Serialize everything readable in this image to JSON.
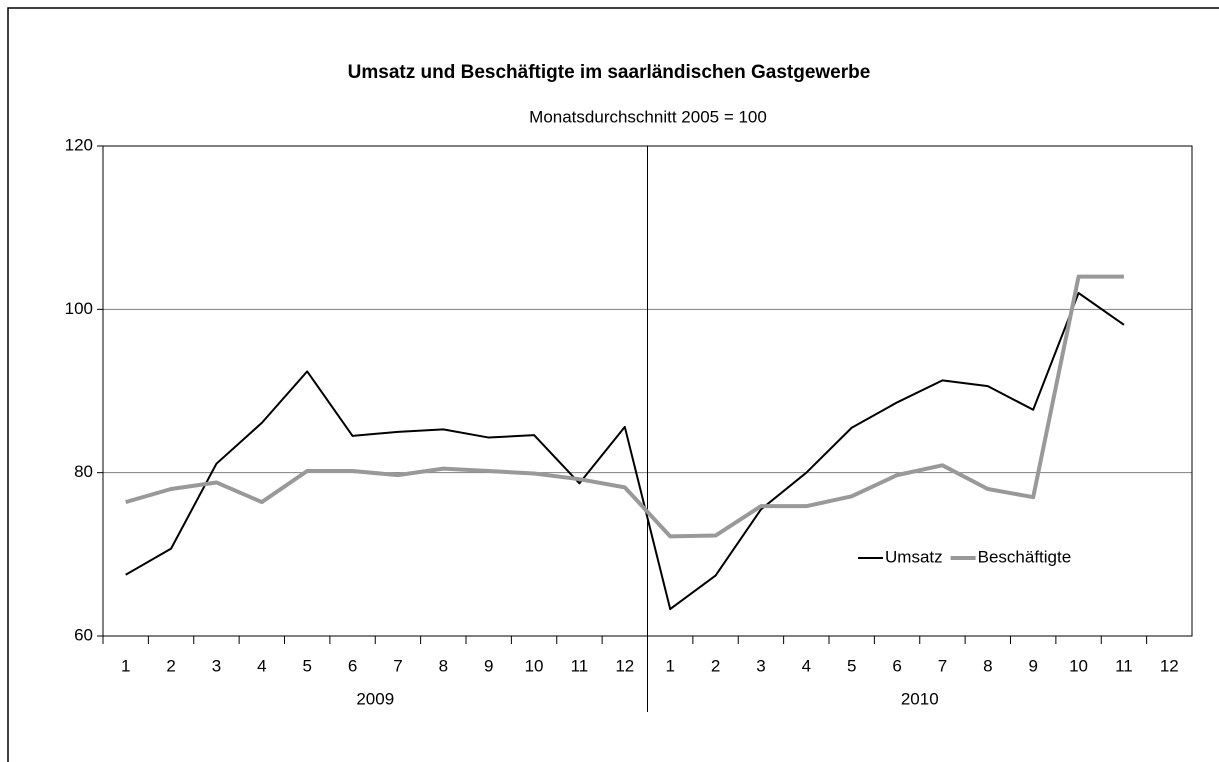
{
  "chart_data": {
    "type": "line",
    "title": "Umsatz und Beschäftigte im saarländischen Gastgewerbe",
    "subtitle": "Monatsdurchschnitt 2005 = 100",
    "categories": [
      "1",
      "2",
      "3",
      "4",
      "5",
      "6",
      "7",
      "8",
      "9",
      "10",
      "11",
      "12",
      "1",
      "2",
      "3",
      "4",
      "5",
      "6",
      "7",
      "8",
      "9",
      "10",
      "11",
      "12"
    ],
    "category_groups": [
      "2009",
      "2010"
    ],
    "series": [
      {
        "name": "Umsatz",
        "color": "#000000",
        "values": [
          67.5,
          70.7,
          81.1,
          86.1,
          92.4,
          84.5,
          85.0,
          85.3,
          84.3,
          84.6,
          78.7,
          85.6,
          63.3,
          67.4,
          75.5,
          80.0,
          85.5,
          88.6,
          91.3,
          90.6,
          87.7,
          102.0,
          98.1,
          null
        ]
      },
      {
        "name": "Beschäftigte",
        "color": "#999999",
        "values": [
          76.4,
          78.0,
          78.8,
          76.4,
          80.2,
          80.2,
          79.7,
          80.5,
          80.2,
          79.9,
          79.2,
          78.2,
          72.2,
          72.3,
          75.9,
          75.9,
          77.1,
          79.7,
          80.9,
          78.0,
          77.0,
          104.0,
          104.0,
          null
        ]
      }
    ],
    "ylim": [
      60,
      120
    ],
    "yticks": [
      60,
      80,
      100,
      120
    ],
    "grid": true,
    "legend": "right"
  }
}
